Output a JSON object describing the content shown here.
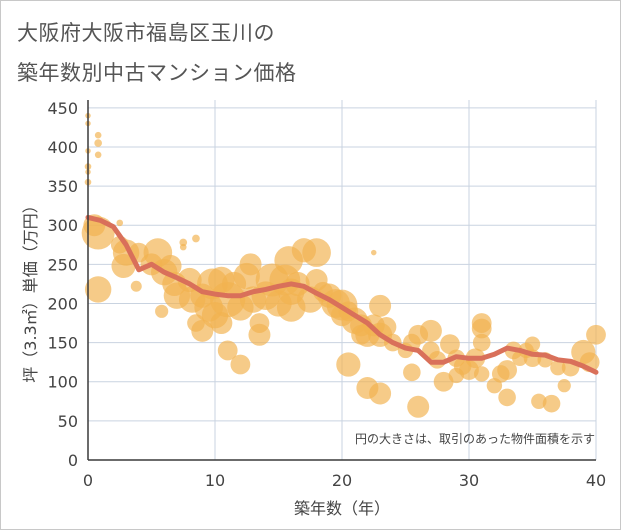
{
  "title": {
    "line1": "大阪府大阪市福島区玉川の",
    "line2": "築年数別中古マンション価格"
  },
  "chart_data": {
    "type": "scatter",
    "title": "大阪府大阪市福島区玉川の築年数別中古マンション価格",
    "xlabel": "築年数（年）",
    "ylabel": "坪（3.3㎡）単価（万円）",
    "xlim": [
      0,
      40
    ],
    "ylim": [
      0,
      460
    ],
    "x_ticks": [
      "0",
      "10",
      "20",
      "30",
      "40"
    ],
    "y_ticks": [
      "0",
      "50",
      "100",
      "150",
      "200",
      "250",
      "300",
      "350",
      "400",
      "450"
    ],
    "x_tick_values": [
      0,
      10,
      20,
      30,
      40
    ],
    "y_tick_values": [
      0,
      50,
      100,
      150,
      200,
      250,
      300,
      350,
      400,
      450
    ],
    "grid": true,
    "annotation": "円の大きさは、取引のあった物件面積を示す",
    "colors": {
      "bubble": "#f2b350",
      "line": "#d9705a",
      "grid": "#c9d3e0",
      "axis": "#3a3a3a"
    },
    "trend_series": {
      "name": "",
      "x": [
        0,
        1,
        2,
        3,
        4,
        5,
        6,
        7,
        8,
        9,
        10,
        11,
        12,
        13,
        14,
        15,
        16,
        17,
        18,
        19,
        20,
        21,
        22,
        23,
        24,
        25,
        26,
        27,
        28,
        29,
        30,
        31,
        32,
        33,
        34,
        35,
        36,
        37,
        38,
        39,
        40
      ],
      "y": [
        310,
        306,
        298,
        275,
        243,
        250,
        240,
        233,
        225,
        215,
        212,
        210,
        210,
        215,
        218,
        222,
        225,
        222,
        213,
        205,
        195,
        185,
        175,
        160,
        150,
        143,
        140,
        125,
        125,
        132,
        130,
        130,
        135,
        143,
        140,
        135,
        134,
        128,
        126,
        120,
        112
      ]
    },
    "points": [
      {
        "x": 0,
        "y": 440,
        "s": 0.25
      },
      {
        "x": 0,
        "y": 430,
        "s": 0.25
      },
      {
        "x": 0,
        "y": 395,
        "s": 0.25
      },
      {
        "x": 0,
        "y": 375,
        "s": 0.3
      },
      {
        "x": 0,
        "y": 368,
        "s": 0.25
      },
      {
        "x": 0,
        "y": 355,
        "s": 0.3
      },
      {
        "x": 0.8,
        "y": 415,
        "s": 0.3
      },
      {
        "x": 0.8,
        "y": 405,
        "s": 0.35
      },
      {
        "x": 0.8,
        "y": 390,
        "s": 0.3
      },
      {
        "x": 0.5,
        "y": 300,
        "s": 1.0
      },
      {
        "x": 0.8,
        "y": 290,
        "s": 1.5
      },
      {
        "x": 0.8,
        "y": 218,
        "s": 1.2
      },
      {
        "x": 2.5,
        "y": 303,
        "s": 0.3
      },
      {
        "x": 2.5,
        "y": 275,
        "s": 0.8
      },
      {
        "x": 3,
        "y": 265,
        "s": 1.2
      },
      {
        "x": 2.8,
        "y": 248,
        "s": 1.1
      },
      {
        "x": 3.8,
        "y": 222,
        "s": 0.5
      },
      {
        "x": 4,
        "y": 265,
        "s": 0.9
      },
      {
        "x": 5,
        "y": 250,
        "s": 1.0
      },
      {
        "x": 5.5,
        "y": 265,
        "s": 1.3
      },
      {
        "x": 6,
        "y": 240,
        "s": 1.2
      },
      {
        "x": 6.5,
        "y": 248,
        "s": 1.0
      },
      {
        "x": 6.8,
        "y": 225,
        "s": 1.1
      },
      {
        "x": 5.8,
        "y": 190,
        "s": 0.6
      },
      {
        "x": 7,
        "y": 210,
        "s": 1.2
      },
      {
        "x": 7.5,
        "y": 278,
        "s": 0.35
      },
      {
        "x": 7.5,
        "y": 272,
        "s": 0.3
      },
      {
        "x": 8.5,
        "y": 283,
        "s": 0.35
      },
      {
        "x": 8,
        "y": 230,
        "s": 1.1
      },
      {
        "x": 8.2,
        "y": 205,
        "s": 1.2
      },
      {
        "x": 8.5,
        "y": 175,
        "s": 0.8
      },
      {
        "x": 9,
        "y": 210,
        "s": 1.1
      },
      {
        "x": 9,
        "y": 165,
        "s": 1.0
      },
      {
        "x": 9.5,
        "y": 195,
        "s": 1.3
      },
      {
        "x": 9.8,
        "y": 225,
        "s": 1.4
      },
      {
        "x": 10,
        "y": 185,
        "s": 1.2
      },
      {
        "x": 10.5,
        "y": 230,
        "s": 1.2
      },
      {
        "x": 10.5,
        "y": 175,
        "s": 1.0
      },
      {
        "x": 11,
        "y": 205,
        "s": 1.6
      },
      {
        "x": 11,
        "y": 140,
        "s": 0.9
      },
      {
        "x": 11.5,
        "y": 225,
        "s": 1.1
      },
      {
        "x": 12,
        "y": 195,
        "s": 1.2
      },
      {
        "x": 12,
        "y": 122,
        "s": 0.9
      },
      {
        "x": 12.5,
        "y": 235,
        "s": 1.2
      },
      {
        "x": 12.8,
        "y": 250,
        "s": 1.0
      },
      {
        "x": 13,
        "y": 205,
        "s": 1.2
      },
      {
        "x": 13.5,
        "y": 175,
        "s": 0.9
      },
      {
        "x": 13.5,
        "y": 160,
        "s": 1.0
      },
      {
        "x": 14,
        "y": 210,
        "s": 1.3
      },
      {
        "x": 14.5,
        "y": 230,
        "s": 1.5
      },
      {
        "x": 15,
        "y": 200,
        "s": 1.2
      },
      {
        "x": 15.5,
        "y": 230,
        "s": 1.4
      },
      {
        "x": 15.8,
        "y": 255,
        "s": 1.3
      },
      {
        "x": 16,
        "y": 195,
        "s": 1.3
      },
      {
        "x": 16,
        "y": 215,
        "s": 1.2
      },
      {
        "x": 16.5,
        "y": 225,
        "s": 1.1
      },
      {
        "x": 17,
        "y": 268,
        "s": 1.1
      },
      {
        "x": 17.5,
        "y": 205,
        "s": 1.2
      },
      {
        "x": 18,
        "y": 265,
        "s": 1.3
      },
      {
        "x": 18,
        "y": 230,
        "s": 1.0
      },
      {
        "x": 18.5,
        "y": 215,
        "s": 0.9
      },
      {
        "x": 19,
        "y": 210,
        "s": 1.1
      },
      {
        "x": 19.5,
        "y": 200,
        "s": 1.3
      },
      {
        "x": 20,
        "y": 198,
        "s": 1.4
      },
      {
        "x": 20,
        "y": 185,
        "s": 1.0
      },
      {
        "x": 20.5,
        "y": 190,
        "s": 0.9
      },
      {
        "x": 20.5,
        "y": 122,
        "s": 1.1
      },
      {
        "x": 21,
        "y": 178,
        "s": 1.2
      },
      {
        "x": 21.5,
        "y": 172,
        "s": 1.0
      },
      {
        "x": 21.5,
        "y": 160,
        "s": 0.9
      },
      {
        "x": 22,
        "y": 92,
        "s": 1.0
      },
      {
        "x": 22,
        "y": 160,
        "s": 1.1
      },
      {
        "x": 22.5,
        "y": 172,
        "s": 1.0
      },
      {
        "x": 22.5,
        "y": 265,
        "s": 0.25
      },
      {
        "x": 23,
        "y": 197,
        "s": 1.0
      },
      {
        "x": 23,
        "y": 160,
        "s": 1.1
      },
      {
        "x": 23,
        "y": 85,
        "s": 1.0
      },
      {
        "x": 23.5,
        "y": 170,
        "s": 0.9
      },
      {
        "x": 24,
        "y": 150,
        "s": 0.8
      },
      {
        "x": 25,
        "y": 140,
        "s": 0.7
      },
      {
        "x": 25.5,
        "y": 150,
        "s": 0.8
      },
      {
        "x": 25.5,
        "y": 112,
        "s": 0.8
      },
      {
        "x": 26,
        "y": 68,
        "s": 1.0
      },
      {
        "x": 26,
        "y": 160,
        "s": 0.9
      },
      {
        "x": 27,
        "y": 165,
        "s": 1.0
      },
      {
        "x": 27,
        "y": 140,
        "s": 0.8
      },
      {
        "x": 27.5,
        "y": 128,
        "s": 0.8
      },
      {
        "x": 28,
        "y": 100,
        "s": 0.9
      },
      {
        "x": 28.5,
        "y": 148,
        "s": 0.9
      },
      {
        "x": 29,
        "y": 108,
        "s": 0.7
      },
      {
        "x": 29,
        "y": 130,
        "s": 0.8
      },
      {
        "x": 29.5,
        "y": 120,
        "s": 0.8
      },
      {
        "x": 30,
        "y": 115,
        "s": 0.9
      },
      {
        "x": 30.5,
        "y": 130,
        "s": 0.9
      },
      {
        "x": 31,
        "y": 175,
        "s": 0.9
      },
      {
        "x": 31,
        "y": 168,
        "s": 0.9
      },
      {
        "x": 31,
        "y": 110,
        "s": 0.7
      },
      {
        "x": 31,
        "y": 150,
        "s": 0.8
      },
      {
        "x": 32,
        "y": 95,
        "s": 0.7
      },
      {
        "x": 32.5,
        "y": 110,
        "s": 0.8
      },
      {
        "x": 33,
        "y": 115,
        "s": 0.9
      },
      {
        "x": 33,
        "y": 80,
        "s": 0.8
      },
      {
        "x": 33.5,
        "y": 140,
        "s": 0.8
      },
      {
        "x": 34,
        "y": 130,
        "s": 0.7
      },
      {
        "x": 34.5,
        "y": 140,
        "s": 0.7
      },
      {
        "x": 35,
        "y": 148,
        "s": 0.7
      },
      {
        "x": 35,
        "y": 130,
        "s": 0.8
      },
      {
        "x": 35.5,
        "y": 75,
        "s": 0.7
      },
      {
        "x": 36,
        "y": 128,
        "s": 0.7
      },
      {
        "x": 36.5,
        "y": 72,
        "s": 0.8
      },
      {
        "x": 37,
        "y": 118,
        "s": 0.7
      },
      {
        "x": 37.5,
        "y": 95,
        "s": 0.6
      },
      {
        "x": 38,
        "y": 118,
        "s": 0.8
      },
      {
        "x": 39,
        "y": 138,
        "s": 1.1
      },
      {
        "x": 39.5,
        "y": 125,
        "s": 0.9
      },
      {
        "x": 40,
        "y": 160,
        "s": 0.9
      }
    ]
  }
}
